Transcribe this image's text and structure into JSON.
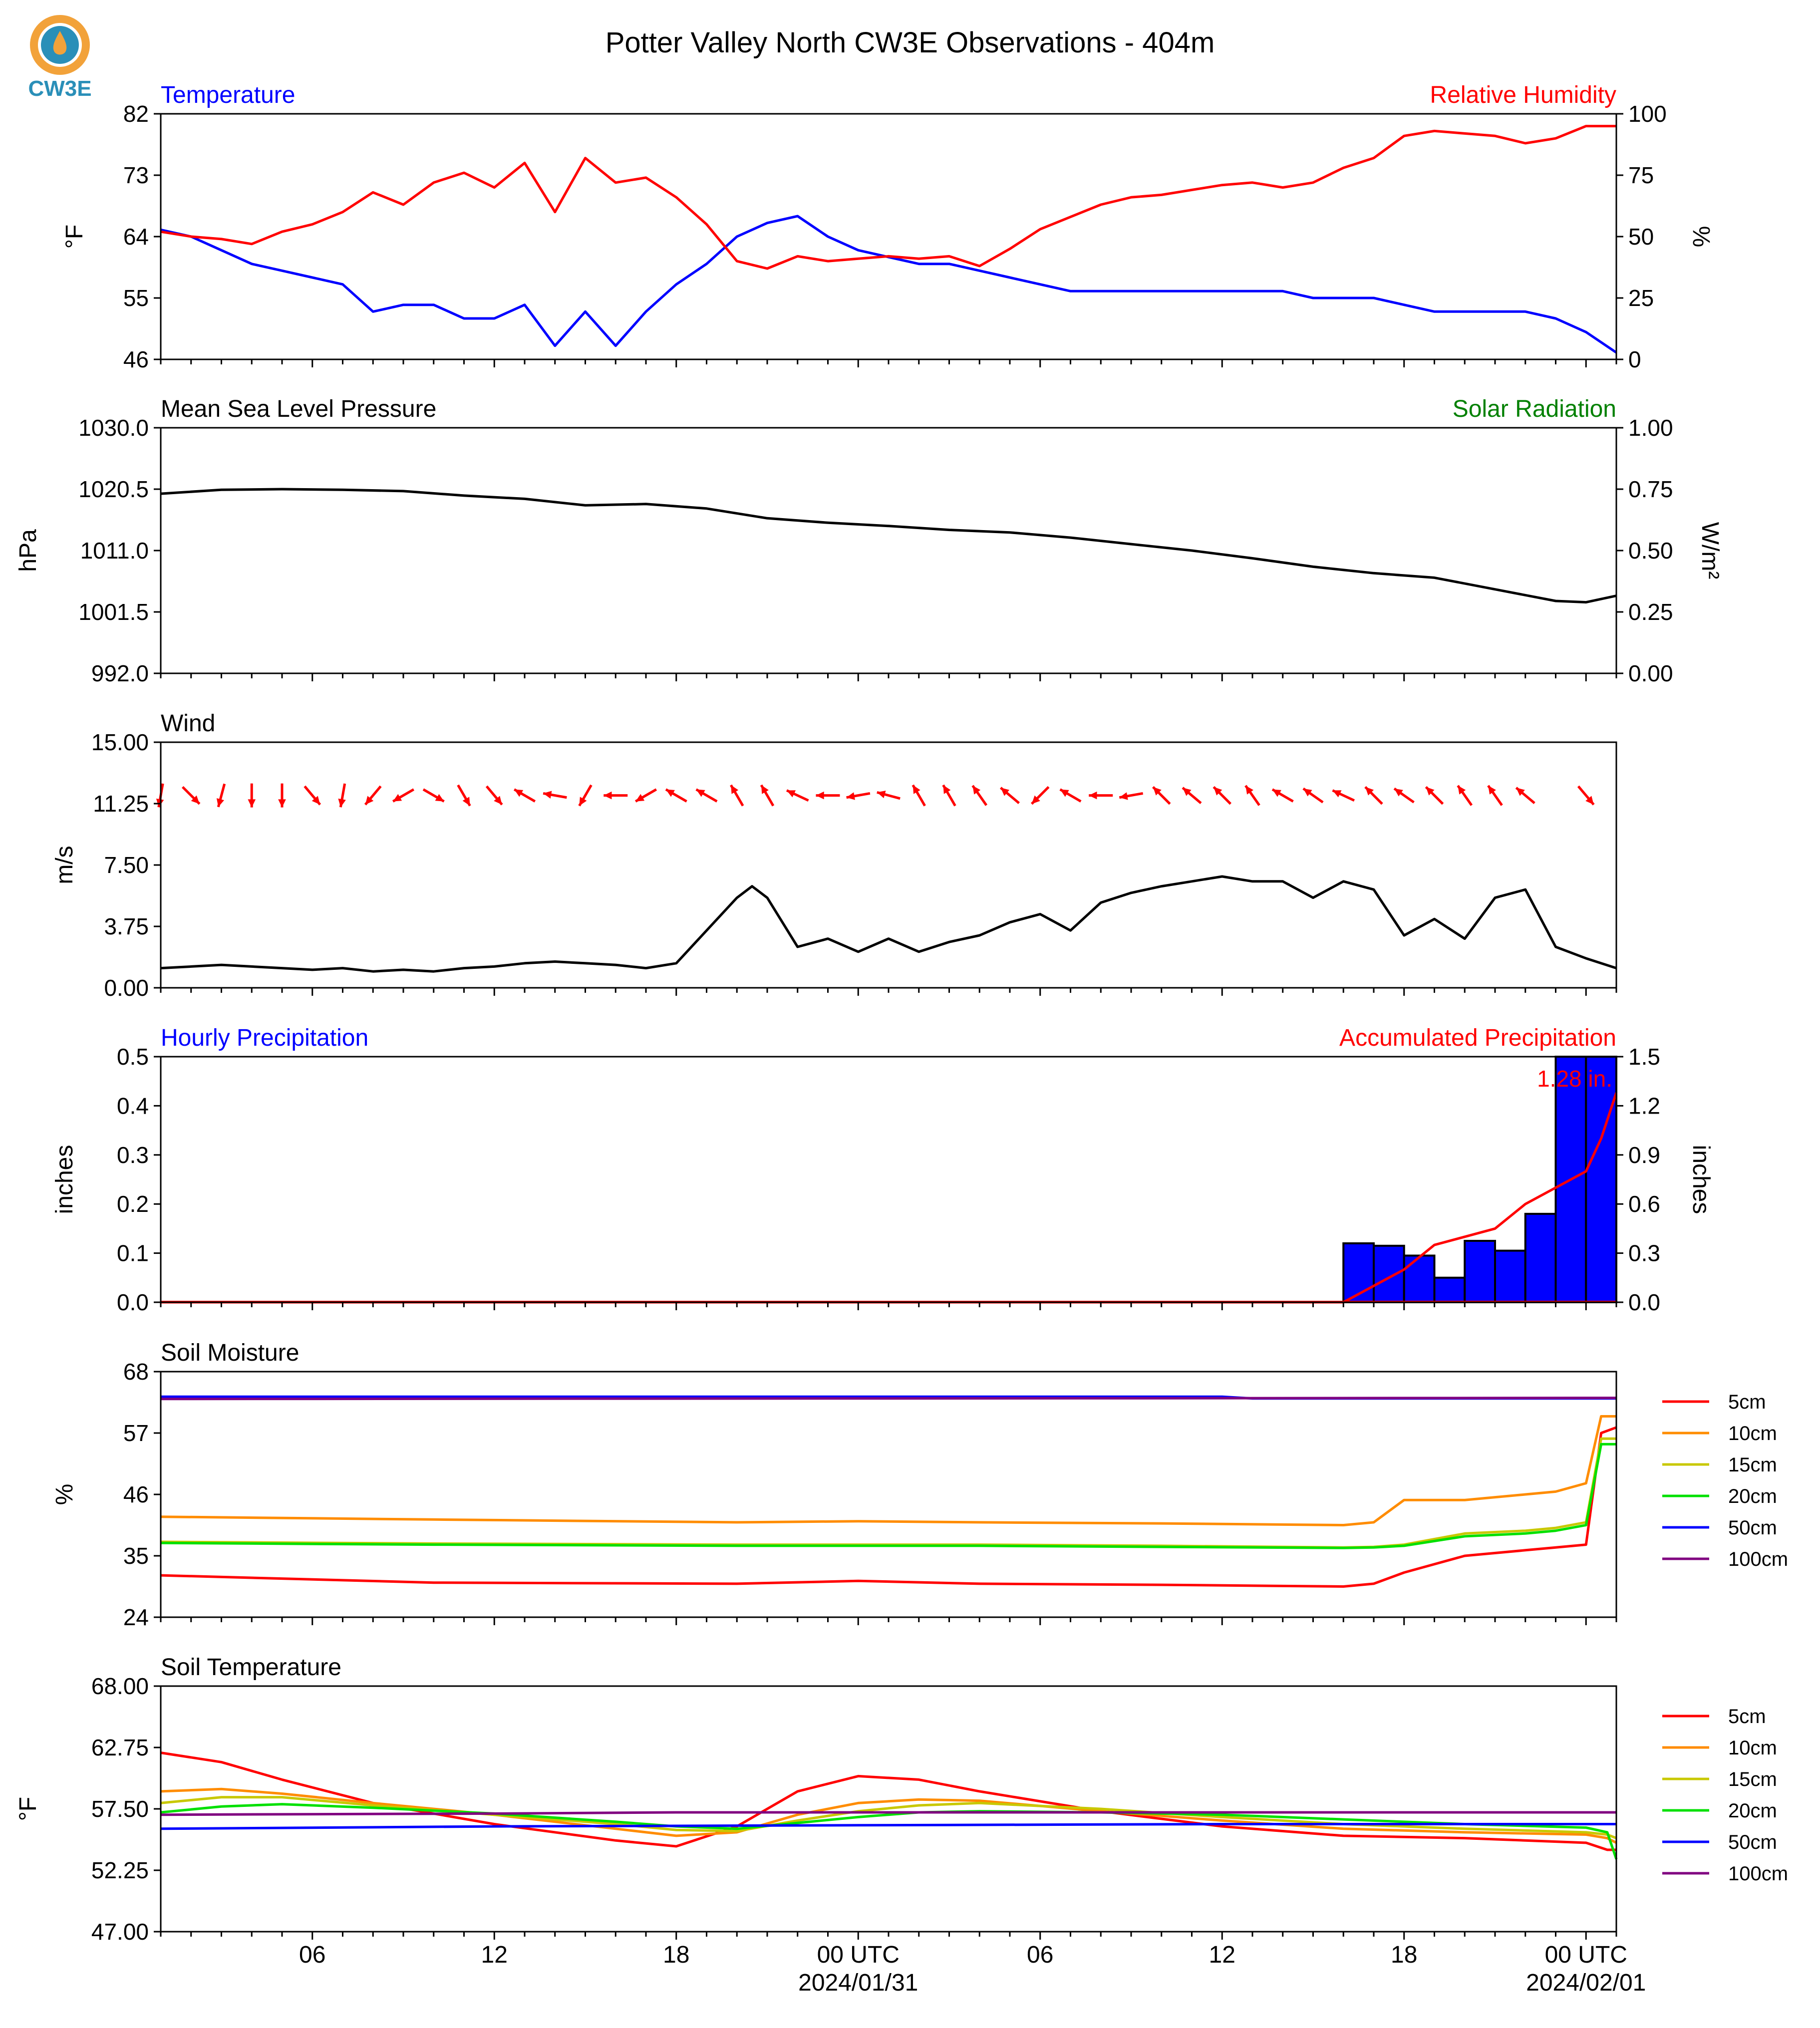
{
  "title": "Potter Valley North CW3E Observations - 404m",
  "logo": {
    "text": "CW3E",
    "colors": {
      "ring": "#f2a23a",
      "drop": "#2a8fb8",
      "text": "#2a8fb8"
    }
  },
  "colors": {
    "temperature": "#0000ff",
    "humidity": "#ff0000",
    "pressure": "#000000",
    "solar": "#008000",
    "wind_speed": "#000000",
    "wind_arrow": "#ff0000",
    "hourly_precip": "#0000ff",
    "accum_precip": "#ff0000",
    "depth_5": "#ff0000",
    "depth_10": "#ff8c00",
    "depth_15": "#c8c800",
    "depth_20": "#00e000",
    "depth_50": "#0000ff",
    "depth_100": "#800080"
  },
  "x_axis": {
    "tick_labels": [
      "06",
      "12",
      "18",
      "00 UTC",
      "06",
      "12",
      "18",
      "00 UTC"
    ],
    "tick_hours": [
      6,
      12,
      18,
      24,
      30,
      36,
      42,
      48
    ],
    "date_labels": [
      {
        "hour": 24,
        "text": "2024/01/31"
      },
      {
        "hour": 48,
        "text": "2024/02/01"
      }
    ],
    "range_hours": [
      1,
      49
    ]
  },
  "chart_data": [
    {
      "id": "temp_rh",
      "type": "line",
      "left_title": "Temperature",
      "right_title": "Relative Humidity",
      "ylabel": "°F",
      "ylabel_right": "%",
      "ylim": [
        46,
        82
      ],
      "yticks": [
        "46",
        "55",
        "64",
        "73",
        "82"
      ],
      "ylim_right": [
        0,
        100
      ],
      "yticks_right": [
        "0",
        "25",
        "50",
        "75",
        "100"
      ],
      "series": [
        {
          "key": "temperature",
          "axis": "left",
          "x": [
            1,
            2,
            3,
            4,
            5,
            6,
            7,
            8,
            9,
            10,
            11,
            12,
            13,
            14,
            15,
            16,
            17,
            18,
            19,
            20,
            21,
            22,
            23,
            24,
            25,
            26,
            27,
            28,
            29,
            30,
            31,
            32,
            33,
            34,
            35,
            36,
            37,
            38,
            39,
            40,
            41,
            42,
            43,
            44,
            45,
            46,
            47,
            48,
            49
          ],
          "y": [
            65,
            64,
            62,
            60,
            59,
            58,
            57,
            53,
            54,
            54,
            52,
            52,
            54,
            48,
            53,
            48,
            53,
            57,
            60,
            64,
            66,
            67,
            64,
            62,
            61,
            60,
            60,
            59,
            58,
            57,
            56,
            56,
            56,
            56,
            56,
            56,
            56,
            56,
            55,
            55,
            55,
            54,
            53,
            53,
            53,
            53,
            52,
            50,
            47
          ]
        },
        {
          "key": "humidity",
          "axis": "right",
          "x": [
            1,
            2,
            3,
            4,
            5,
            6,
            7,
            8,
            9,
            10,
            11,
            12,
            13,
            14,
            15,
            16,
            17,
            18,
            19,
            20,
            21,
            22,
            23,
            24,
            25,
            26,
            27,
            28,
            29,
            30,
            31,
            32,
            33,
            34,
            35,
            36,
            37,
            38,
            39,
            40,
            41,
            42,
            43,
            44,
            45,
            46,
            47,
            48,
            49
          ],
          "y": [
            52,
            50,
            49,
            47,
            52,
            55,
            60,
            68,
            63,
            72,
            76,
            70,
            80,
            60,
            82,
            72,
            74,
            66,
            55,
            40,
            37,
            42,
            40,
            41,
            42,
            41,
            42,
            38,
            45,
            53,
            58,
            63,
            66,
            67,
            69,
            71,
            72,
            70,
            72,
            78,
            82,
            91,
            93,
            92,
            91,
            88,
            90,
            95,
            95
          ]
        }
      ]
    },
    {
      "id": "pressure",
      "type": "line",
      "left_title": "Mean Sea Level Pressure",
      "right_title": "Solar Radiation",
      "ylabel": "hPa",
      "ylabel_right": "W/m²",
      "ylim": [
        992,
        1030
      ],
      "yticks": [
        "992.0",
        "1001.5",
        "1011.0",
        "1020.5",
        "1030.0"
      ],
      "ylim_right": [
        0,
        1
      ],
      "yticks_right": [
        "0.00",
        "0.25",
        "0.50",
        "0.75",
        "1.00"
      ],
      "series": [
        {
          "key": "pressure",
          "axis": "left",
          "x": [
            1,
            3,
            5,
            7,
            9,
            11,
            13,
            15,
            17,
            19,
            21,
            23,
            25,
            27,
            29,
            31,
            33,
            35,
            37,
            39,
            41,
            43,
            45,
            47,
            48,
            49
          ],
          "y": [
            1019.8,
            1020.4,
            1020.5,
            1020.4,
            1020.2,
            1019.5,
            1019,
            1018,
            1018.2,
            1017.5,
            1016,
            1015.3,
            1014.8,
            1014.2,
            1013.8,
            1013,
            1012,
            1011,
            1009.8,
            1008.5,
            1007.5,
            1006.8,
            1005,
            1003.2,
            1003.0,
            1004.0
          ]
        }
      ]
    },
    {
      "id": "wind",
      "type": "line",
      "left_title": "Wind",
      "ylabel": "m/s",
      "ylim": [
        0,
        15
      ],
      "yticks": [
        "0.00",
        "3.75",
        "7.50",
        "11.25",
        "15.00"
      ],
      "series": [
        {
          "key": "wind_speed",
          "axis": "left",
          "x": [
            1,
            2,
            3,
            4,
            5,
            6,
            7,
            8,
            9,
            10,
            11,
            12,
            13,
            14,
            15,
            16,
            17,
            18,
            19,
            20,
            20.5,
            21,
            22,
            23,
            24,
            25,
            26,
            27,
            28,
            29,
            30,
            31,
            32,
            33,
            34,
            35,
            36,
            37,
            38,
            39,
            40,
            41,
            42,
            43,
            44,
            45,
            46,
            47,
            48,
            49
          ],
          "y": [
            1.2,
            1.3,
            1.4,
            1.3,
            1.2,
            1.1,
            1.2,
            1.0,
            1.1,
            1.0,
            1.2,
            1.3,
            1.5,
            1.6,
            1.5,
            1.4,
            1.2,
            1.5,
            3.5,
            5.5,
            6.2,
            5.5,
            2.5,
            3.0,
            2.2,
            3.0,
            2.2,
            2.8,
            3.2,
            4.0,
            4.5,
            3.5,
            5.2,
            5.8,
            6.2,
            6.5,
            6.8,
            6.5,
            6.5,
            5.5,
            6.5,
            6.0,
            3.2,
            4.2,
            3.0,
            5.5,
            6.0,
            2.5,
            1.8,
            1.2
          ]
        }
      ],
      "arrows": {
        "x": [
          1,
          2,
          3,
          4,
          5,
          6,
          7,
          8,
          9,
          10,
          11,
          12,
          13,
          14,
          15,
          16,
          17,
          18,
          19,
          20,
          21,
          22,
          23,
          24,
          25,
          26,
          27,
          28,
          29,
          30,
          31,
          32,
          33,
          34,
          35,
          36,
          37,
          38,
          39,
          40,
          41,
          42,
          43,
          44,
          45,
          46,
          47,
          48
        ],
        "dir_deg": [
          -10,
          45,
          -15,
          0,
          0,
          40,
          -10,
          -40,
          -60,
          60,
          30,
          40,
          -120,
          -100,
          -30,
          -90,
          -60,
          -120,
          -120,
          -150,
          -150,
          -115,
          -90,
          -80,
          -105,
          -150,
          -150,
          -145,
          -130,
          -45,
          -120,
          -90,
          -80,
          -135,
          -130,
          -135,
          -145,
          -120,
          -125,
          -115,
          -135,
          -125,
          -135,
          -145,
          -145,
          -130,
          null,
          40
        ]
      }
    },
    {
      "id": "precip",
      "type": "bar",
      "left_title": "Hourly Precipitation",
      "right_title": "Accumulated Precipitation",
      "ylabel": "inches",
      "ylabel_right": "inches",
      "ylim": [
        0,
        0.5
      ],
      "yticks": [
        "0.0",
        "0.1",
        "0.2",
        "0.3",
        "0.4",
        "0.5"
      ],
      "ylim_right": [
        0,
        1.5
      ],
      "yticks_right": [
        "0.0",
        "0.3",
        "0.6",
        "0.9",
        "1.2",
        "1.5"
      ],
      "annotation": "1.28 in.",
      "bars": {
        "x": [
          41,
          42,
          43,
          44,
          45,
          46,
          47,
          48,
          49
        ],
        "values": [
          0.12,
          0.115,
          0.095,
          0.05,
          0.125,
          0.105,
          0.18,
          0.5,
          0.5
        ]
      },
      "series": [
        {
          "key": "accum_precip",
          "axis": "right",
          "x": [
            1,
            40,
            41,
            42,
            43,
            44,
            45,
            46,
            47,
            48,
            48.5,
            49
          ],
          "y": [
            0,
            0,
            0.1,
            0.2,
            0.35,
            0.4,
            0.45,
            0.6,
            0.7,
            0.8,
            1.0,
            1.28
          ]
        }
      ]
    },
    {
      "id": "soil_moisture",
      "type": "line",
      "left_title": "Soil Moisture",
      "ylabel": "%",
      "ylim": [
        24,
        68
      ],
      "yticks": [
        "24",
        "35",
        "46",
        "57",
        "68"
      ],
      "legend": [
        "5cm",
        "10cm",
        "15cm",
        "20cm",
        "50cm",
        "100cm"
      ],
      "series": [
        {
          "key": "depth_5",
          "name": "5cm",
          "x": [
            1,
            10,
            20,
            24,
            28,
            34,
            40,
            41,
            42,
            44,
            46,
            47,
            48,
            48.5,
            49
          ],
          "y": [
            31.5,
            30.2,
            30.0,
            30.5,
            30.0,
            29.8,
            29.5,
            30,
            32,
            35,
            36,
            36.5,
            37,
            57,
            58
          ]
        },
        {
          "key": "depth_10",
          "name": "10cm",
          "x": [
            1,
            10,
            20,
            24,
            28,
            34,
            40,
            41,
            42,
            44,
            46,
            47,
            48,
            48.5,
            49
          ],
          "y": [
            42,
            41.5,
            41,
            41.2,
            41,
            40.8,
            40.5,
            41,
            45,
            45,
            46,
            46.5,
            48,
            60,
            60
          ]
        },
        {
          "key": "depth_15",
          "name": "15cm",
          "x": [
            1,
            10,
            20,
            24,
            28,
            34,
            40,
            41,
            42,
            44,
            46,
            47,
            48,
            48.5,
            49
          ],
          "y": [
            37.5,
            37.2,
            37,
            37,
            37,
            36.8,
            36.5,
            36.6,
            37,
            39,
            39.5,
            40,
            41,
            56,
            56
          ]
        },
        {
          "key": "depth_20",
          "name": "20cm",
          "x": [
            1,
            10,
            20,
            24,
            28,
            34,
            40,
            41,
            42,
            44,
            46,
            47,
            48,
            48.5,
            49
          ],
          "y": [
            37.3,
            37.0,
            36.8,
            36.8,
            36.8,
            36.6,
            36.4,
            36.5,
            36.8,
            38.5,
            39,
            39.5,
            40.5,
            55,
            55
          ]
        },
        {
          "key": "depth_50",
          "name": "50cm",
          "x": [
            1,
            36,
            37,
            49
          ],
          "y": [
            63.5,
            63.5,
            63.2,
            63.2
          ]
        },
        {
          "key": "depth_100",
          "name": "100cm",
          "x": [
            1,
            49
          ],
          "y": [
            63.1,
            63.3
          ]
        }
      ]
    },
    {
      "id": "soil_temperature",
      "type": "line",
      "left_title": "Soil Temperature",
      "ylabel": "°F",
      "ylim": [
        47,
        68
      ],
      "yticks": [
        "47.00",
        "52.25",
        "57.50",
        "62.75",
        "68.00"
      ],
      "legend": [
        "5cm",
        "10cm",
        "15cm",
        "20cm",
        "50cm",
        "100cm"
      ],
      "series": [
        {
          "key": "depth_5",
          "name": "5cm",
          "x": [
            1,
            3,
            5,
            8,
            12,
            16,
            18,
            20,
            22,
            24,
            26,
            28,
            32,
            36,
            40,
            44,
            48,
            48.7,
            49
          ],
          "y": [
            62.3,
            61.5,
            60,
            58,
            56.2,
            54.8,
            54.3,
            56,
            59,
            60.3,
            60,
            59,
            57.3,
            56,
            55.2,
            55,
            54.6,
            54,
            54
          ]
        },
        {
          "key": "depth_10",
          "name": "10cm",
          "x": [
            1,
            3,
            5,
            8,
            12,
            16,
            18,
            20,
            22,
            24,
            26,
            28,
            32,
            36,
            40,
            44,
            48,
            48.7,
            49
          ],
          "y": [
            59,
            59.2,
            58.8,
            58,
            57,
            55.8,
            55.2,
            55.5,
            57,
            58,
            58.3,
            58.2,
            57.3,
            56.5,
            55.8,
            55.5,
            55.3,
            55,
            54.6
          ]
        },
        {
          "key": "depth_15",
          "name": "15cm",
          "x": [
            1,
            3,
            5,
            8,
            12,
            16,
            18,
            20,
            22,
            24,
            26,
            28,
            32,
            36,
            40,
            44,
            48,
            48.7,
            49
          ],
          "y": [
            58,
            58.5,
            58.5,
            57.8,
            57,
            56.2,
            55.7,
            55.6,
            56.5,
            57.3,
            57.8,
            58,
            57.5,
            56.8,
            56.2,
            55.8,
            55.5,
            55.3,
            55
          ]
        },
        {
          "key": "depth_20",
          "name": "20cm",
          "x": [
            1,
            3,
            5,
            8,
            12,
            16,
            18,
            20,
            22,
            24,
            26,
            28,
            32,
            36,
            40,
            44,
            48,
            48.7,
            49
          ],
          "y": [
            57.2,
            57.7,
            57.9,
            57.6,
            57.1,
            56.4,
            56,
            55.8,
            56.3,
            56.8,
            57.2,
            57.3,
            57.2,
            57,
            56.6,
            56.2,
            55.9,
            55.5,
            53.2
          ]
        },
        {
          "key": "depth_50",
          "name": "50cm",
          "x": [
            1,
            12,
            24,
            36,
            49
          ],
          "y": [
            55.8,
            56,
            56.1,
            56.2,
            56.2
          ]
        },
        {
          "key": "depth_100",
          "name": "100cm",
          "x": [
            1,
            12,
            18,
            24,
            36,
            49
          ],
          "y": [
            57,
            57.1,
            57.2,
            57.2,
            57.2,
            57.2
          ]
        }
      ]
    }
  ]
}
